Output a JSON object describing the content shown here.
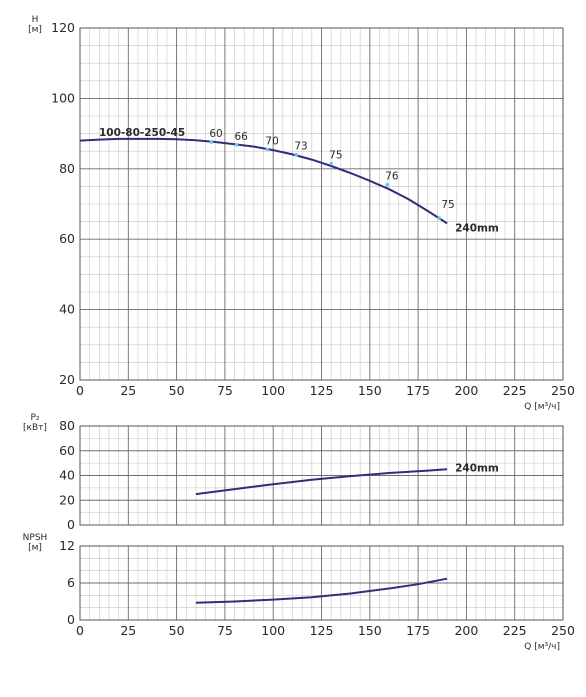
{
  "chart_data": [
    {
      "type": "line",
      "id": "head",
      "ylabel_lines": [
        "H",
        "[м]"
      ],
      "xlabel": "Q [м³/ч]",
      "xlim": [
        0,
        250
      ],
      "ylim": [
        20,
        120
      ],
      "x_ticks": [
        0,
        25,
        50,
        75,
        100,
        125,
        150,
        175,
        200,
        225,
        250
      ],
      "y_ticks": [
        20,
        40,
        60,
        80,
        100,
        120
      ],
      "grid": true,
      "x_minor_step": 5,
      "y_minor_step": 5,
      "curve_color": "#2f2f7a",
      "model_label": "100-80-250-45",
      "series": [
        {
          "name": "240mm",
          "x": [
            0,
            10,
            20,
            30,
            40,
            50,
            60,
            70,
            80,
            90,
            100,
            110,
            120,
            130,
            140,
            150,
            160,
            170,
            180,
            190
          ],
          "y": [
            88,
            88.3,
            88.5,
            88.5,
            88.5,
            88.4,
            88.1,
            87.6,
            87,
            86.3,
            85.3,
            84.1,
            82.6,
            80.8,
            78.8,
            76.6,
            74.2,
            71.4,
            68,
            64.5
          ]
        }
      ],
      "efficiency_points": [
        {
          "label": "60",
          "x": 68,
          "y": 87.6
        },
        {
          "label": "66",
          "x": 81,
          "y": 86.8
        },
        {
          "label": "70",
          "x": 97,
          "y": 85.5
        },
        {
          "label": "73",
          "x": 112,
          "y": 84
        },
        {
          "label": "75",
          "x": 130,
          "y": 81.5
        },
        {
          "label": "76",
          "x": 159,
          "y": 75.5
        },
        {
          "label": "75",
          "x": 186,
          "y": 66
        }
      ]
    },
    {
      "type": "line",
      "id": "power",
      "ylabel_lines": [
        "P₂",
        "[кВт]"
      ],
      "xlabel": "Q [м³/ч]",
      "xlim": [
        0,
        250
      ],
      "ylim": [
        0,
        80
      ],
      "y_ticks": [
        0,
        20,
        40,
        60,
        80
      ],
      "grid": true,
      "x_minor_step": 5,
      "y_minor_step": 10,
      "curve_color": "#2f2f7a",
      "series": [
        {
          "name": "240mm",
          "x": [
            60,
            80,
            100,
            120,
            140,
            160,
            180,
            190
          ],
          "y": [
            25,
            29,
            33,
            36.5,
            39.5,
            42,
            44,
            45
          ]
        }
      ]
    },
    {
      "type": "line",
      "id": "npsh",
      "ylabel_lines": [
        "NPSH",
        "[м]"
      ],
      "xlabel": "Q [м³/ч]",
      "xlim": [
        0,
        250
      ],
      "ylim": [
        0,
        12
      ],
      "x_ticks": [
        0,
        25,
        50,
        75,
        100,
        125,
        150,
        175,
        200,
        225,
        250
      ],
      "y_ticks": [
        0,
        6,
        12
      ],
      "grid": true,
      "x_minor_step": 5,
      "y_minor_step": 2,
      "curve_color": "#2f2f7a",
      "series": [
        {
          "name": "",
          "x": [
            60,
            80,
            100,
            120,
            140,
            160,
            175,
            190
          ],
          "y": [
            2.8,
            3.0,
            3.3,
            3.7,
            4.3,
            5.1,
            5.8,
            6.7
          ]
        }
      ]
    }
  ]
}
